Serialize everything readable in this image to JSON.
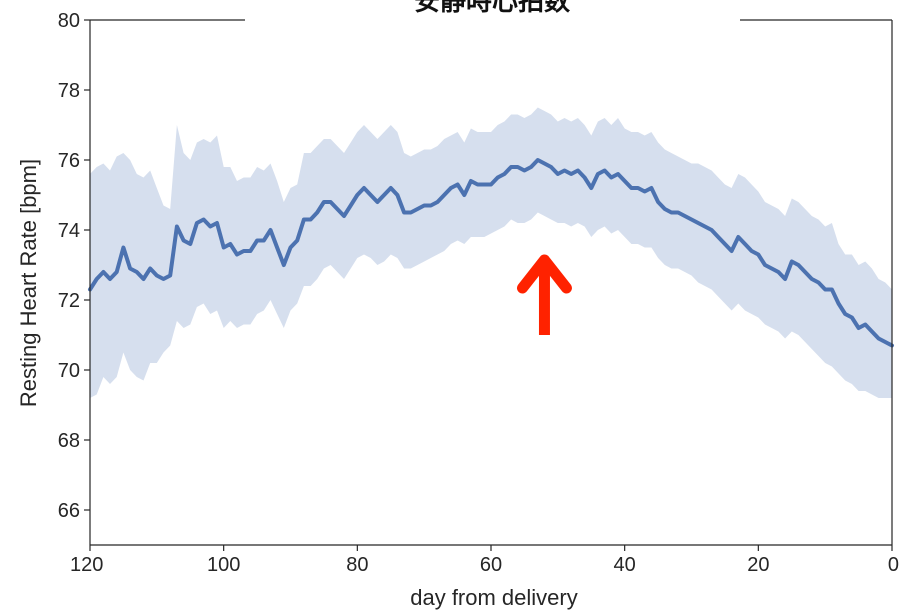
{
  "chart_data": {
    "type": "line",
    "title": "安静時心拍数",
    "xlabel": "day from delivery",
    "ylabel": "Resting Heart Rate [bpm]",
    "xlim": [
      120,
      0
    ],
    "ylim": [
      65,
      80
    ],
    "x_ticks": [
      "120",
      "100",
      "80",
      "60",
      "40",
      "20",
      "0"
    ],
    "x_tick_values": [
      120,
      100,
      80,
      60,
      40,
      20,
      0
    ],
    "y_ticks": [
      "66",
      "68",
      "70",
      "72",
      "74",
      "76",
      "78",
      "80"
    ],
    "y_tick_values": [
      66,
      68,
      70,
      72,
      74,
      76,
      78,
      80
    ],
    "grid": false,
    "colors": {
      "line": "#4c72b0",
      "band": "#d6dfee",
      "arrow": "#ff2200"
    },
    "annotation": {
      "type": "arrow",
      "direction": "up",
      "x": 52,
      "y_from": 71.0,
      "y_to": 73.6,
      "icon": "red-up-arrow"
    },
    "series": [
      {
        "x": [
          120,
          119,
          118,
          117,
          116,
          115,
          114,
          113,
          112,
          111,
          110,
          109,
          108,
          107,
          106,
          105,
          104,
          103,
          102,
          101,
          100,
          99,
          98,
          97,
          96,
          95,
          94,
          93,
          92,
          91,
          90,
          89,
          88,
          87,
          86,
          85,
          84,
          83,
          82,
          81,
          80,
          79,
          78,
          77,
          76,
          75,
          74,
          73,
          72,
          71,
          70,
          69,
          68,
          67,
          66,
          65,
          64,
          63,
          62,
          61,
          60,
          59,
          58,
          57,
          56,
          55,
          54,
          53,
          52,
          51,
          50,
          49,
          48,
          47,
          46,
          45,
          44,
          43,
          42,
          41,
          40,
          39,
          38,
          37,
          36,
          35,
          34,
          33,
          32,
          31,
          30,
          29,
          28,
          27,
          26,
          25,
          24,
          23,
          22,
          21,
          20,
          19,
          18,
          17,
          16,
          15,
          14,
          13,
          12,
          11,
          10,
          9,
          8,
          7,
          6,
          5,
          4,
          3,
          2,
          1,
          0
        ],
        "values": [
          72.3,
          72.6,
          72.8,
          72.6,
          72.8,
          73.5,
          72.9,
          72.8,
          72.6,
          72.9,
          72.7,
          72.6,
          72.7,
          74.1,
          73.7,
          73.6,
          74.2,
          74.3,
          74.1,
          74.2,
          73.5,
          73.6,
          73.3,
          73.4,
          73.4,
          73.7,
          73.7,
          74.0,
          73.5,
          73.0,
          73.5,
          73.7,
          74.3,
          74.3,
          74.5,
          74.8,
          74.8,
          74.6,
          74.4,
          74.7,
          75.0,
          75.2,
          75.0,
          74.8,
          75.0,
          75.2,
          75.0,
          74.5,
          74.5,
          74.6,
          74.7,
          74.7,
          74.8,
          75.0,
          75.2,
          75.3,
          75.0,
          75.4,
          75.3,
          75.3,
          75.3,
          75.5,
          75.6,
          75.8,
          75.8,
          75.7,
          75.8,
          76.0,
          75.9,
          75.8,
          75.6,
          75.7,
          75.6,
          75.7,
          75.5,
          75.2,
          75.6,
          75.7,
          75.5,
          75.6,
          75.4,
          75.2,
          75.2,
          75.1,
          75.2,
          74.8,
          74.6,
          74.5,
          74.5,
          74.4,
          74.3,
          74.2,
          74.1,
          74.0,
          73.8,
          73.6,
          73.4,
          73.8,
          73.6,
          73.4,
          73.3,
          73.0,
          72.9,
          72.8,
          72.6,
          73.1,
          73.0,
          72.8,
          72.6,
          72.5,
          72.3,
          72.3,
          71.9,
          71.6,
          71.5,
          71.2,
          71.3,
          71.1,
          70.9,
          70.8,
          70.7
        ],
        "lower": [
          69.2,
          69.3,
          69.8,
          69.6,
          69.8,
          70.5,
          70.0,
          69.8,
          69.7,
          70.2,
          70.2,
          70.5,
          70.7,
          71.4,
          71.2,
          71.3,
          71.8,
          71.9,
          71.6,
          71.7,
          71.2,
          71.4,
          71.2,
          71.3,
          71.3,
          71.6,
          71.7,
          72.0,
          71.6,
          71.2,
          71.7,
          71.9,
          72.4,
          72.4,
          72.6,
          72.9,
          73.0,
          72.8,
          72.6,
          72.9,
          73.2,
          73.3,
          73.2,
          73.0,
          73.1,
          73.3,
          73.2,
          72.9,
          72.9,
          73.0,
          73.1,
          73.2,
          73.3,
          73.4,
          73.6,
          73.7,
          73.6,
          73.8,
          73.8,
          73.8,
          73.9,
          74.0,
          74.1,
          74.3,
          74.2,
          74.2,
          74.3,
          74.5,
          74.4,
          74.3,
          74.2,
          74.2,
          74.1,
          74.2,
          74.1,
          73.8,
          74.0,
          74.1,
          73.9,
          74.0,
          73.8,
          73.6,
          73.6,
          73.5,
          73.5,
          73.2,
          73.0,
          72.9,
          72.9,
          72.8,
          72.7,
          72.5,
          72.4,
          72.3,
          72.1,
          71.9,
          71.7,
          71.9,
          71.7,
          71.6,
          71.5,
          71.3,
          71.2,
          71.1,
          70.9,
          71.1,
          71.0,
          70.8,
          70.6,
          70.4,
          70.2,
          70.1,
          69.9,
          69.7,
          69.6,
          69.4,
          69.4,
          69.3,
          69.2,
          69.2,
          69.2
        ],
        "upper": [
          75.6,
          75.8,
          75.9,
          75.7,
          76.1,
          76.2,
          76.0,
          75.6,
          75.5,
          75.7,
          75.2,
          74.7,
          74.6,
          77.0,
          76.2,
          76.0,
          76.5,
          76.6,
          76.5,
          76.7,
          75.8,
          75.8,
          75.4,
          75.5,
          75.5,
          75.8,
          75.7,
          75.9,
          75.4,
          74.8,
          75.2,
          75.3,
          76.2,
          76.2,
          76.4,
          76.6,
          76.6,
          76.4,
          76.2,
          76.5,
          76.8,
          77.0,
          76.8,
          76.6,
          76.8,
          77.0,
          76.8,
          76.2,
          76.1,
          76.2,
          76.3,
          76.3,
          76.4,
          76.6,
          76.7,
          76.8,
          76.5,
          76.9,
          76.8,
          76.8,
          76.8,
          77.0,
          77.1,
          77.3,
          77.3,
          77.2,
          77.3,
          77.5,
          77.4,
          77.3,
          77.1,
          77.2,
          77.1,
          77.2,
          77.0,
          76.7,
          77.1,
          77.2,
          77.0,
          77.2,
          76.9,
          76.8,
          76.8,
          76.7,
          76.8,
          76.5,
          76.3,
          76.2,
          76.1,
          76.0,
          75.9,
          75.9,
          75.8,
          75.7,
          75.5,
          75.3,
          75.2,
          75.6,
          75.5,
          75.3,
          75.1,
          74.8,
          74.7,
          74.6,
          74.4,
          74.9,
          74.8,
          74.6,
          74.4,
          74.3,
          74.1,
          74.2,
          73.6,
          73.3,
          73.3,
          73.0,
          73.1,
          72.9,
          72.6,
          72.5,
          72.3
        ]
      }
    ]
  }
}
